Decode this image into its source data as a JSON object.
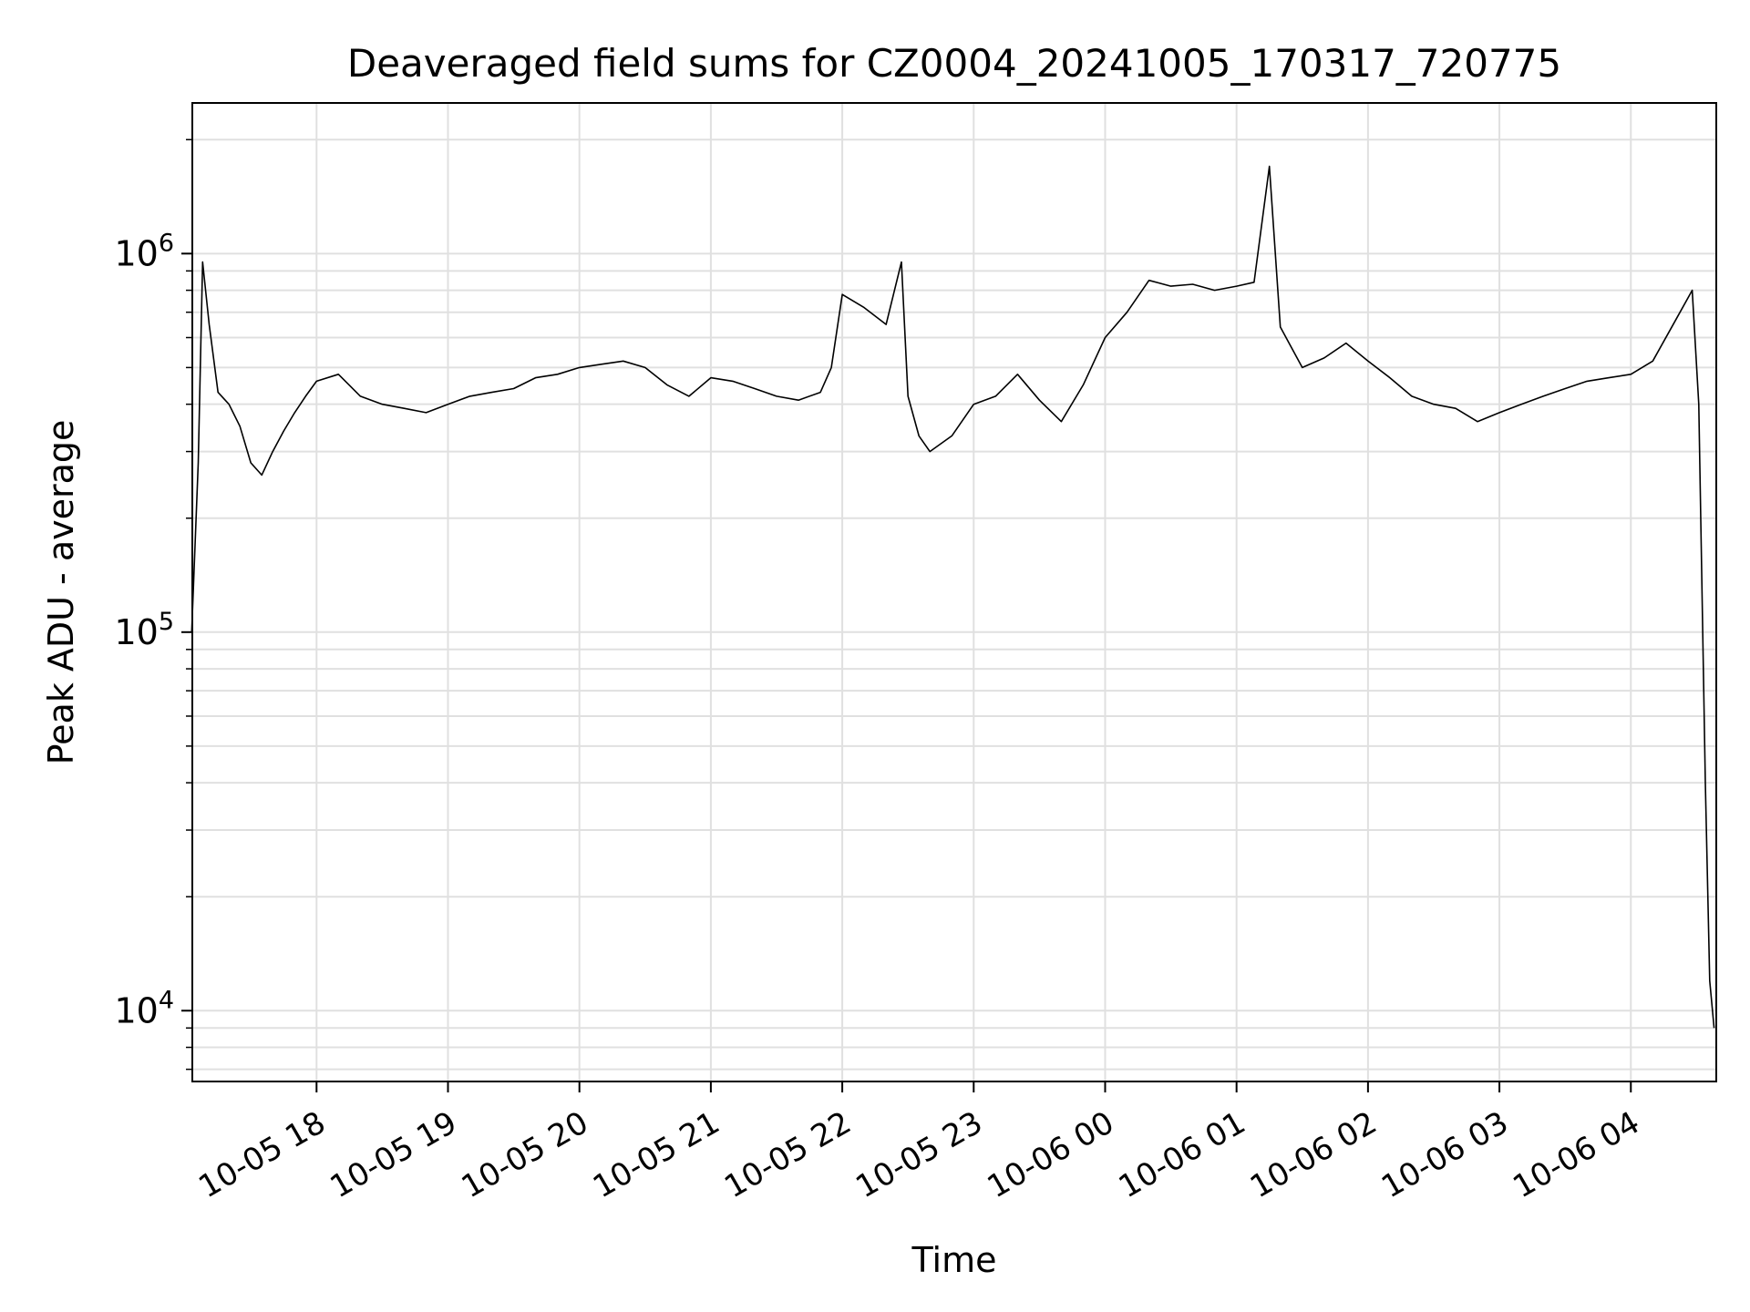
{
  "chart_data": {
    "type": "line",
    "title": "Deaveraged field sums for CZ0004_20241005_170317_720775",
    "xlabel": "Time",
    "ylabel": "Peak ADU - average",
    "yscale": "log",
    "ylim": [
      6500,
      2500000
    ],
    "xlim": [
      "2024-10-05T17:03:17",
      "2024-10-06T04:39:00"
    ],
    "grid": true,
    "line_color": "#000000",
    "grid_color": "#e0e0e0",
    "x_ticks": [
      {
        "value": "2024-10-05T18:00",
        "label": "10-05 18"
      },
      {
        "value": "2024-10-05T19:00",
        "label": "10-05 19"
      },
      {
        "value": "2024-10-05T20:00",
        "label": "10-05 20"
      },
      {
        "value": "2024-10-05T21:00",
        "label": "10-05 21"
      },
      {
        "value": "2024-10-05T22:00",
        "label": "10-05 22"
      },
      {
        "value": "2024-10-05T23:00",
        "label": "10-05 23"
      },
      {
        "value": "2024-10-06T00:00",
        "label": "10-06 00"
      },
      {
        "value": "2024-10-06T01:00",
        "label": "10-06 01"
      },
      {
        "value": "2024-10-06T02:00",
        "label": "10-06 02"
      },
      {
        "value": "2024-10-06T03:00",
        "label": "10-06 03"
      },
      {
        "value": "2024-10-06T04:00",
        "label": "10-06 04"
      }
    ],
    "y_ticks": [
      {
        "value": 10000,
        "base": "10",
        "exp": "4"
      },
      {
        "value": 100000,
        "base": "10",
        "exp": "5"
      },
      {
        "value": 1000000,
        "base": "10",
        "exp": "6"
      }
    ],
    "series": [
      {
        "x": [
          "2024-10-05T17:03",
          "2024-10-05T17:06",
          "2024-10-05T17:08",
          "2024-10-05T17:11",
          "2024-10-05T17:15",
          "2024-10-05T17:20",
          "2024-10-05T17:25",
          "2024-10-05T17:30",
          "2024-10-05T17:35",
          "2024-10-05T17:40",
          "2024-10-05T17:45",
          "2024-10-05T17:50",
          "2024-10-05T17:55",
          "2024-10-05T18:00",
          "2024-10-05T18:10",
          "2024-10-05T18:20",
          "2024-10-05T18:30",
          "2024-10-05T18:40",
          "2024-10-05T18:50",
          "2024-10-05T19:00",
          "2024-10-05T19:10",
          "2024-10-05T19:20",
          "2024-10-05T19:30",
          "2024-10-05T19:40",
          "2024-10-05T19:50",
          "2024-10-05T20:00",
          "2024-10-05T20:10",
          "2024-10-05T20:20",
          "2024-10-05T20:30",
          "2024-10-05T20:40",
          "2024-10-05T20:50",
          "2024-10-05T21:00",
          "2024-10-05T21:10",
          "2024-10-05T21:20",
          "2024-10-05T21:30",
          "2024-10-05T21:40",
          "2024-10-05T21:50",
          "2024-10-05T21:55",
          "2024-10-05T22:00",
          "2024-10-05T22:10",
          "2024-10-05T22:20",
          "2024-10-05T22:27",
          "2024-10-05T22:30",
          "2024-10-05T22:35",
          "2024-10-05T22:40",
          "2024-10-05T22:50",
          "2024-10-05T23:00",
          "2024-10-05T23:10",
          "2024-10-05T23:20",
          "2024-10-05T23:30",
          "2024-10-05T23:40",
          "2024-10-05T23:50",
          "2024-10-06T00:00",
          "2024-10-06T00:10",
          "2024-10-06T00:20",
          "2024-10-06T00:30",
          "2024-10-06T00:40",
          "2024-10-06T00:50",
          "2024-10-06T01:00",
          "2024-10-06T01:08",
          "2024-10-06T01:15",
          "2024-10-06T01:20",
          "2024-10-06T01:30",
          "2024-10-06T01:40",
          "2024-10-06T01:50",
          "2024-10-06T02:00",
          "2024-10-06T02:10",
          "2024-10-06T02:20",
          "2024-10-06T02:30",
          "2024-10-06T02:40",
          "2024-10-06T02:50",
          "2024-10-06T03:00",
          "2024-10-06T03:10",
          "2024-10-06T03:20",
          "2024-10-06T03:30",
          "2024-10-06T03:40",
          "2024-10-06T03:50",
          "2024-10-06T04:00",
          "2024-10-06T04:10",
          "2024-10-06T04:20",
          "2024-10-06T04:28",
          "2024-10-06T04:31",
          "2024-10-06T04:34",
          "2024-10-06T04:36",
          "2024-10-06T04:38"
        ],
        "y": [
          100000,
          280000,
          950000,
          650000,
          430000,
          400000,
          350000,
          280000,
          260000,
          300000,
          340000,
          380000,
          420000,
          460000,
          480000,
          420000,
          400000,
          390000,
          380000,
          400000,
          420000,
          430000,
          440000,
          470000,
          480000,
          500000,
          510000,
          520000,
          500000,
          450000,
          420000,
          470000,
          460000,
          440000,
          420000,
          410000,
          430000,
          500000,
          780000,
          720000,
          650000,
          950000,
          420000,
          330000,
          300000,
          330000,
          400000,
          420000,
          480000,
          410000,
          360000,
          450000,
          600000,
          700000,
          850000,
          820000,
          830000,
          800000,
          820000,
          840000,
          1700000,
          640000,
          500000,
          530000,
          580000,
          520000,
          470000,
          420000,
          400000,
          390000,
          360000,
          380000,
          400000,
          420000,
          440000,
          460000,
          470000,
          480000,
          520000,
          660000,
          800000,
          400000,
          40000,
          12000,
          9000
        ]
      }
    ]
  }
}
